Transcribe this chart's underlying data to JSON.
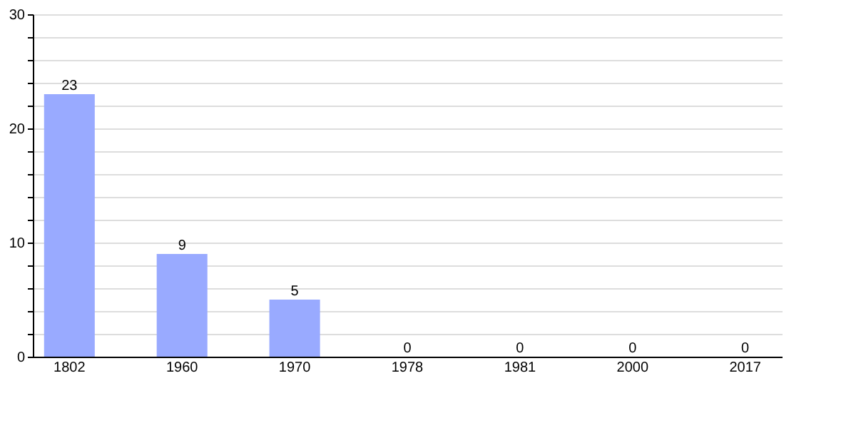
{
  "chart_data": {
    "type": "bar",
    "categories": [
      "1802",
      "1960",
      "1970",
      "1978",
      "1981",
      "2000",
      "2017"
    ],
    "values": [
      23,
      9,
      5,
      0,
      0,
      0,
      0
    ],
    "color": "#99aaff",
    "ylim": [
      0,
      30
    ],
    "yticks": [
      0,
      {
        "value": 2,
        "label": null
      },
      {
        "value": 4,
        "label": null
      },
      {
        "value": 6,
        "label": null
      },
      {
        "value": 8,
        "label": null
      },
      10,
      {
        "value": 12,
        "label": null
      },
      {
        "value": 14,
        "label": null
      },
      {
        "value": 16,
        "label": null
      },
      {
        "value": 18,
        "label": null
      },
      20,
      {
        "value": 22,
        "label": null
      },
      {
        "value": 24,
        "label": null
      },
      {
        "value": 26,
        "label": null
      },
      {
        "value": 28,
        "label": null
      },
      30
    ],
    "grid": "y",
    "data_labels": true
  }
}
